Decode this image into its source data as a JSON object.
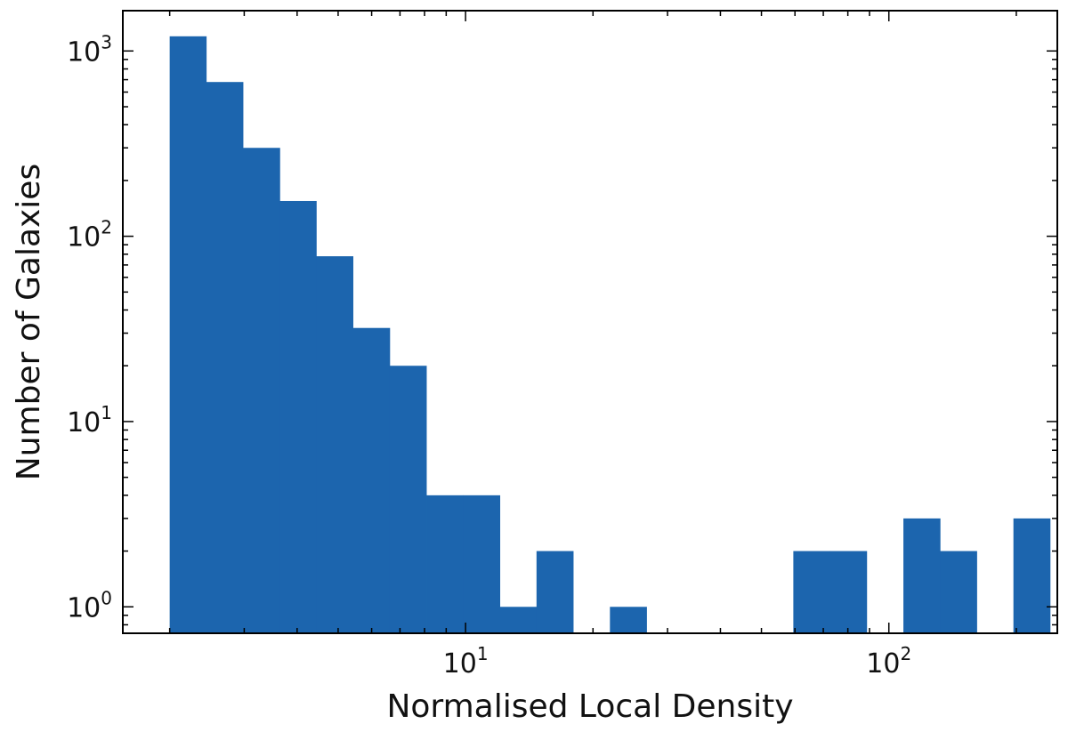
{
  "chart_data": {
    "type": "bar",
    "xlabel": "Normalised Local Density",
    "ylabel": "Number of Galaxies",
    "x_scale": "log",
    "y_scale": "log",
    "xlim": [
      1.55,
      250
    ],
    "ylim": [
      0.72,
      1650
    ],
    "grid": false,
    "legend": "none",
    "bar_color": "#1c65ae",
    "bin_edges": [
      2.0,
      2.44,
      2.98,
      3.64,
      4.44,
      5.42,
      6.62,
      8.08,
      9.87,
      12.05,
      14.71,
      17.96,
      21.93,
      26.77,
      32.68,
      39.9,
      48.71,
      59.47,
      72.6,
      88.64,
      108.22,
      132.12,
      161.3,
      196.9
    ],
    "values": [
      1200,
      680,
      300,
      155,
      78,
      32,
      20,
      4,
      4,
      1,
      2,
      0,
      1,
      0,
      0,
      0,
      0,
      2,
      2,
      0,
      3,
      2,
      0,
      3
    ],
    "x_ticks": [
      {
        "value": 10,
        "base": "10",
        "exp": "1"
      },
      {
        "value": 100,
        "base": "10",
        "exp": "2"
      }
    ],
    "y_ticks": [
      {
        "value": 1,
        "base": "10",
        "exp": "0"
      },
      {
        "value": 10,
        "base": "10",
        "exp": "1"
      },
      {
        "value": 100,
        "base": "10",
        "exp": "2"
      },
      {
        "value": 1000,
        "base": "10",
        "exp": "3"
      }
    ]
  }
}
